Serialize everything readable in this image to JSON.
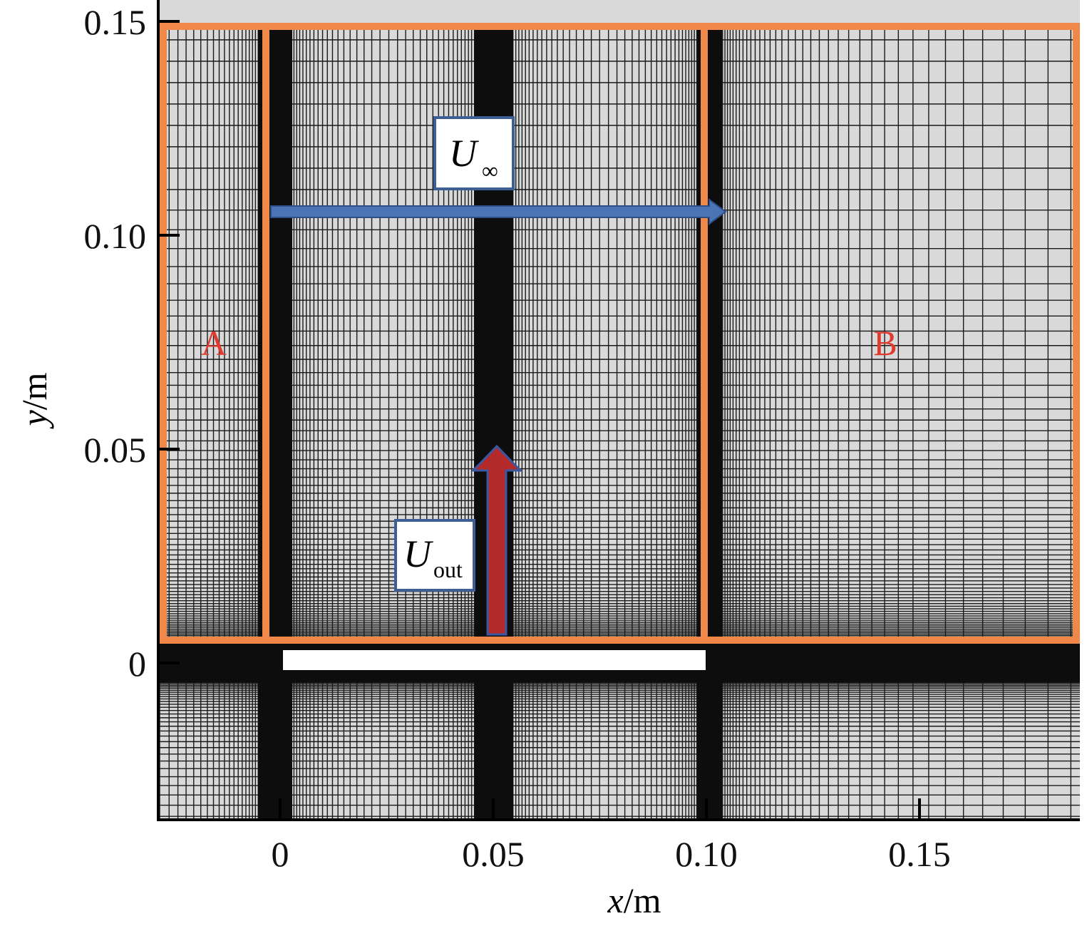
{
  "axes": {
    "xlabel": {
      "var": "x",
      "unit": "/m"
    },
    "ylabel": {
      "var": "y",
      "unit": "/m"
    },
    "xticks": [
      0,
      0.05,
      {
        "value": 0.1,
        "label": "0.10"
      },
      0.15
    ],
    "yticks": [
      0,
      0.05,
      {
        "value": 0.1,
        "label": "0.10"
      },
      0.15
    ]
  },
  "regions": {
    "a": "A",
    "b": "B"
  },
  "arrows": {
    "free_stream": {
      "symbol": "U",
      "subscript": "∞"
    },
    "outflow": {
      "symbol": "U",
      "subscript": "out"
    }
  }
}
